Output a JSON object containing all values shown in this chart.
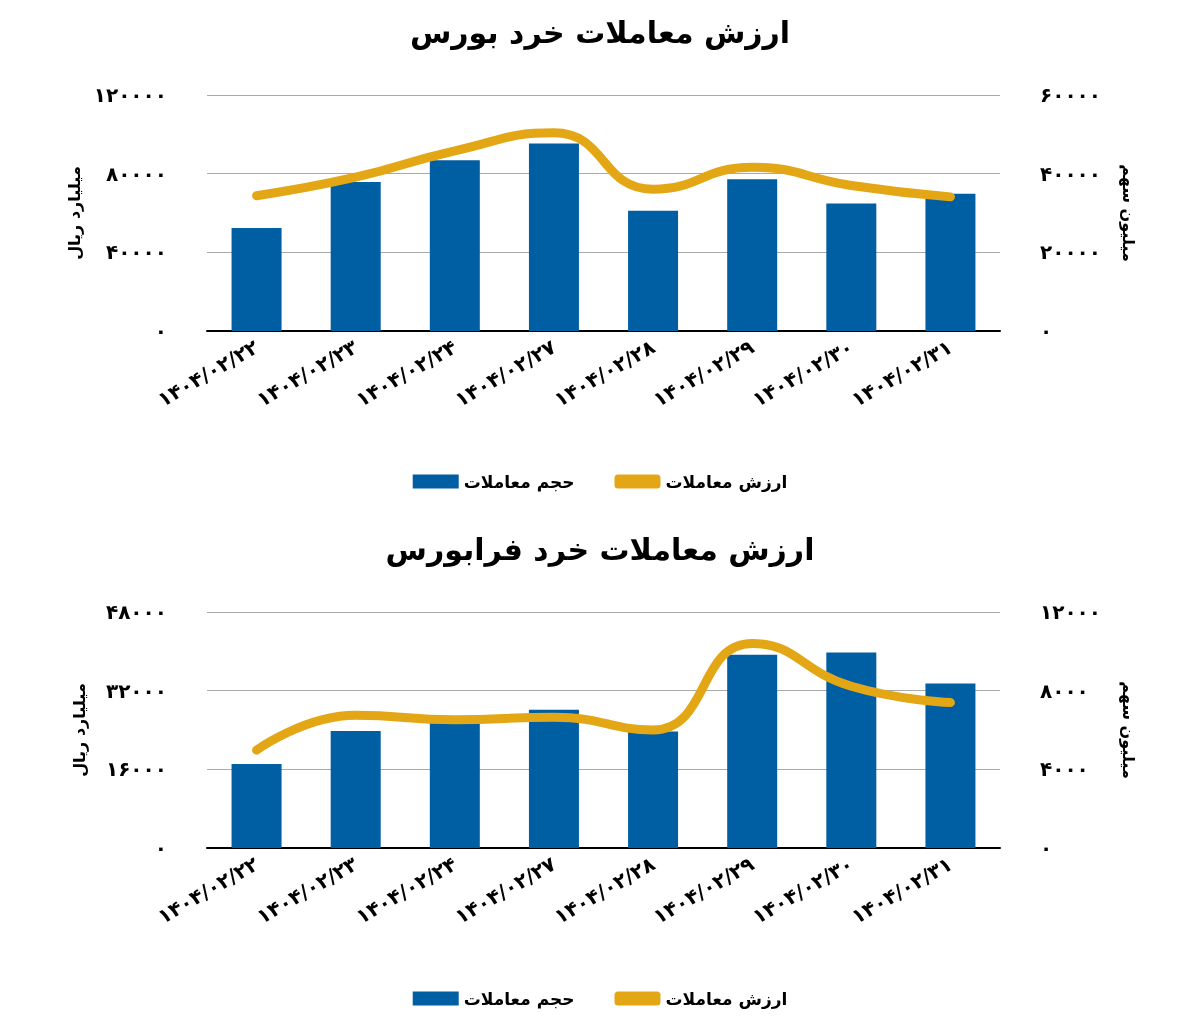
{
  "chart_data": [
    {
      "type": "bar",
      "title": "ارزش معاملات خرد بورس",
      "ylabel": "میلیارد ریال",
      "y2label": "میلیون سهم",
      "categories": [
        "۱۴۰۴/۰۲/۲۲",
        "۱۴۰۴/۰۲/۲۳",
        "۱۴۰۴/۰۲/۲۴",
        "۱۴۰۴/۰۲/۲۷",
        "۱۴۰۴/۰۲/۲۸",
        "۱۴۰۴/۰۲/۲۹",
        "۱۴۰۴/۰۲/۳۰",
        "۱۴۰۴/۰۲/۳۱"
      ],
      "series": [
        {
          "name": "حجم معاملات",
          "axis": "y2",
          "color": "#005ea3",
          "values": [
            26200,
            37900,
            43400,
            47700,
            30600,
            38600,
            32400,
            34900
          ]
        },
        {
          "name": "ارزش معاملات",
          "type": "line",
          "axis": "y",
          "color": "#e3a716",
          "marker": "none",
          "line_style": "solid",
          "values": [
            68800,
            78200,
            91600,
            100800,
            72100,
            83200,
            74000,
            68200
          ]
        }
      ],
      "ylim": [
        0,
        120000
      ],
      "yticks": [
        {
          "value": 0,
          "label": "۰"
        },
        {
          "value": 40000,
          "label": "۴۰۰۰۰"
        },
        {
          "value": 80000,
          "label": "۸۰۰۰۰"
        },
        {
          "value": 120000,
          "label": "۱۲۰۰۰۰"
        }
      ],
      "y2lim": [
        0,
        60000
      ],
      "y2ticks": [
        {
          "value": 0,
          "label": "۰"
        },
        {
          "value": 20000,
          "label": "۲۰۰۰۰"
        },
        {
          "value": 40000,
          "label": "۴۰۰۰۰"
        },
        {
          "value": 60000,
          "label": "۶۰۰۰۰"
        }
      ],
      "grid": "y",
      "legend": "bottom"
    },
    {
      "type": "bar",
      "title": "ارزش معاملات خرد فرابورس",
      "ylabel": "میلیارد ریال",
      "y2label": "میلیون سهم",
      "categories": [
        "۱۴۰۴/۰۲/۲۲",
        "۱۴۰۴/۰۲/۲۳",
        "۱۴۰۴/۰۲/۲۴",
        "۱۴۰۴/۰۲/۲۷",
        "۱۴۰۴/۰۲/۲۸",
        "۱۴۰۴/۰۲/۲۹",
        "۱۴۰۴/۰۲/۳۰",
        "۱۴۰۴/۰۲/۳۱"
      ],
      "series": [
        {
          "name": "حجم معاملات",
          "axis": "y2",
          "color": "#005ea3",
          "values": [
            4270,
            5950,
            6420,
            7030,
            5920,
            9830,
            9940,
            8370
          ]
        },
        {
          "name": "ارزش معاملات",
          "type": "line",
          "axis": "y",
          "color": "#e3a716",
          "marker": "none",
          "line_style": "solid",
          "values": [
            19900,
            27000,
            26100,
            26600,
            24000,
            41600,
            32900,
            29600
          ]
        }
      ],
      "ylim": [
        0,
        48000
      ],
      "yticks": [
        {
          "value": 0,
          "label": "۰"
        },
        {
          "value": 16000,
          "label": "۱۶۰۰۰"
        },
        {
          "value": 32000,
          "label": "۳۲۰۰۰"
        },
        {
          "value": 48000,
          "label": "۴۸۰۰۰"
        }
      ],
      "y2lim": [
        0,
        12000
      ],
      "y2ticks": [
        {
          "value": 0,
          "label": "۰"
        },
        {
          "value": 4000,
          "label": "۴۰۰۰"
        },
        {
          "value": 8000,
          "label": "۸۰۰۰"
        },
        {
          "value": 12000,
          "label": "۱۲۰۰۰"
        }
      ],
      "grid": "y",
      "legend": "bottom"
    }
  ]
}
